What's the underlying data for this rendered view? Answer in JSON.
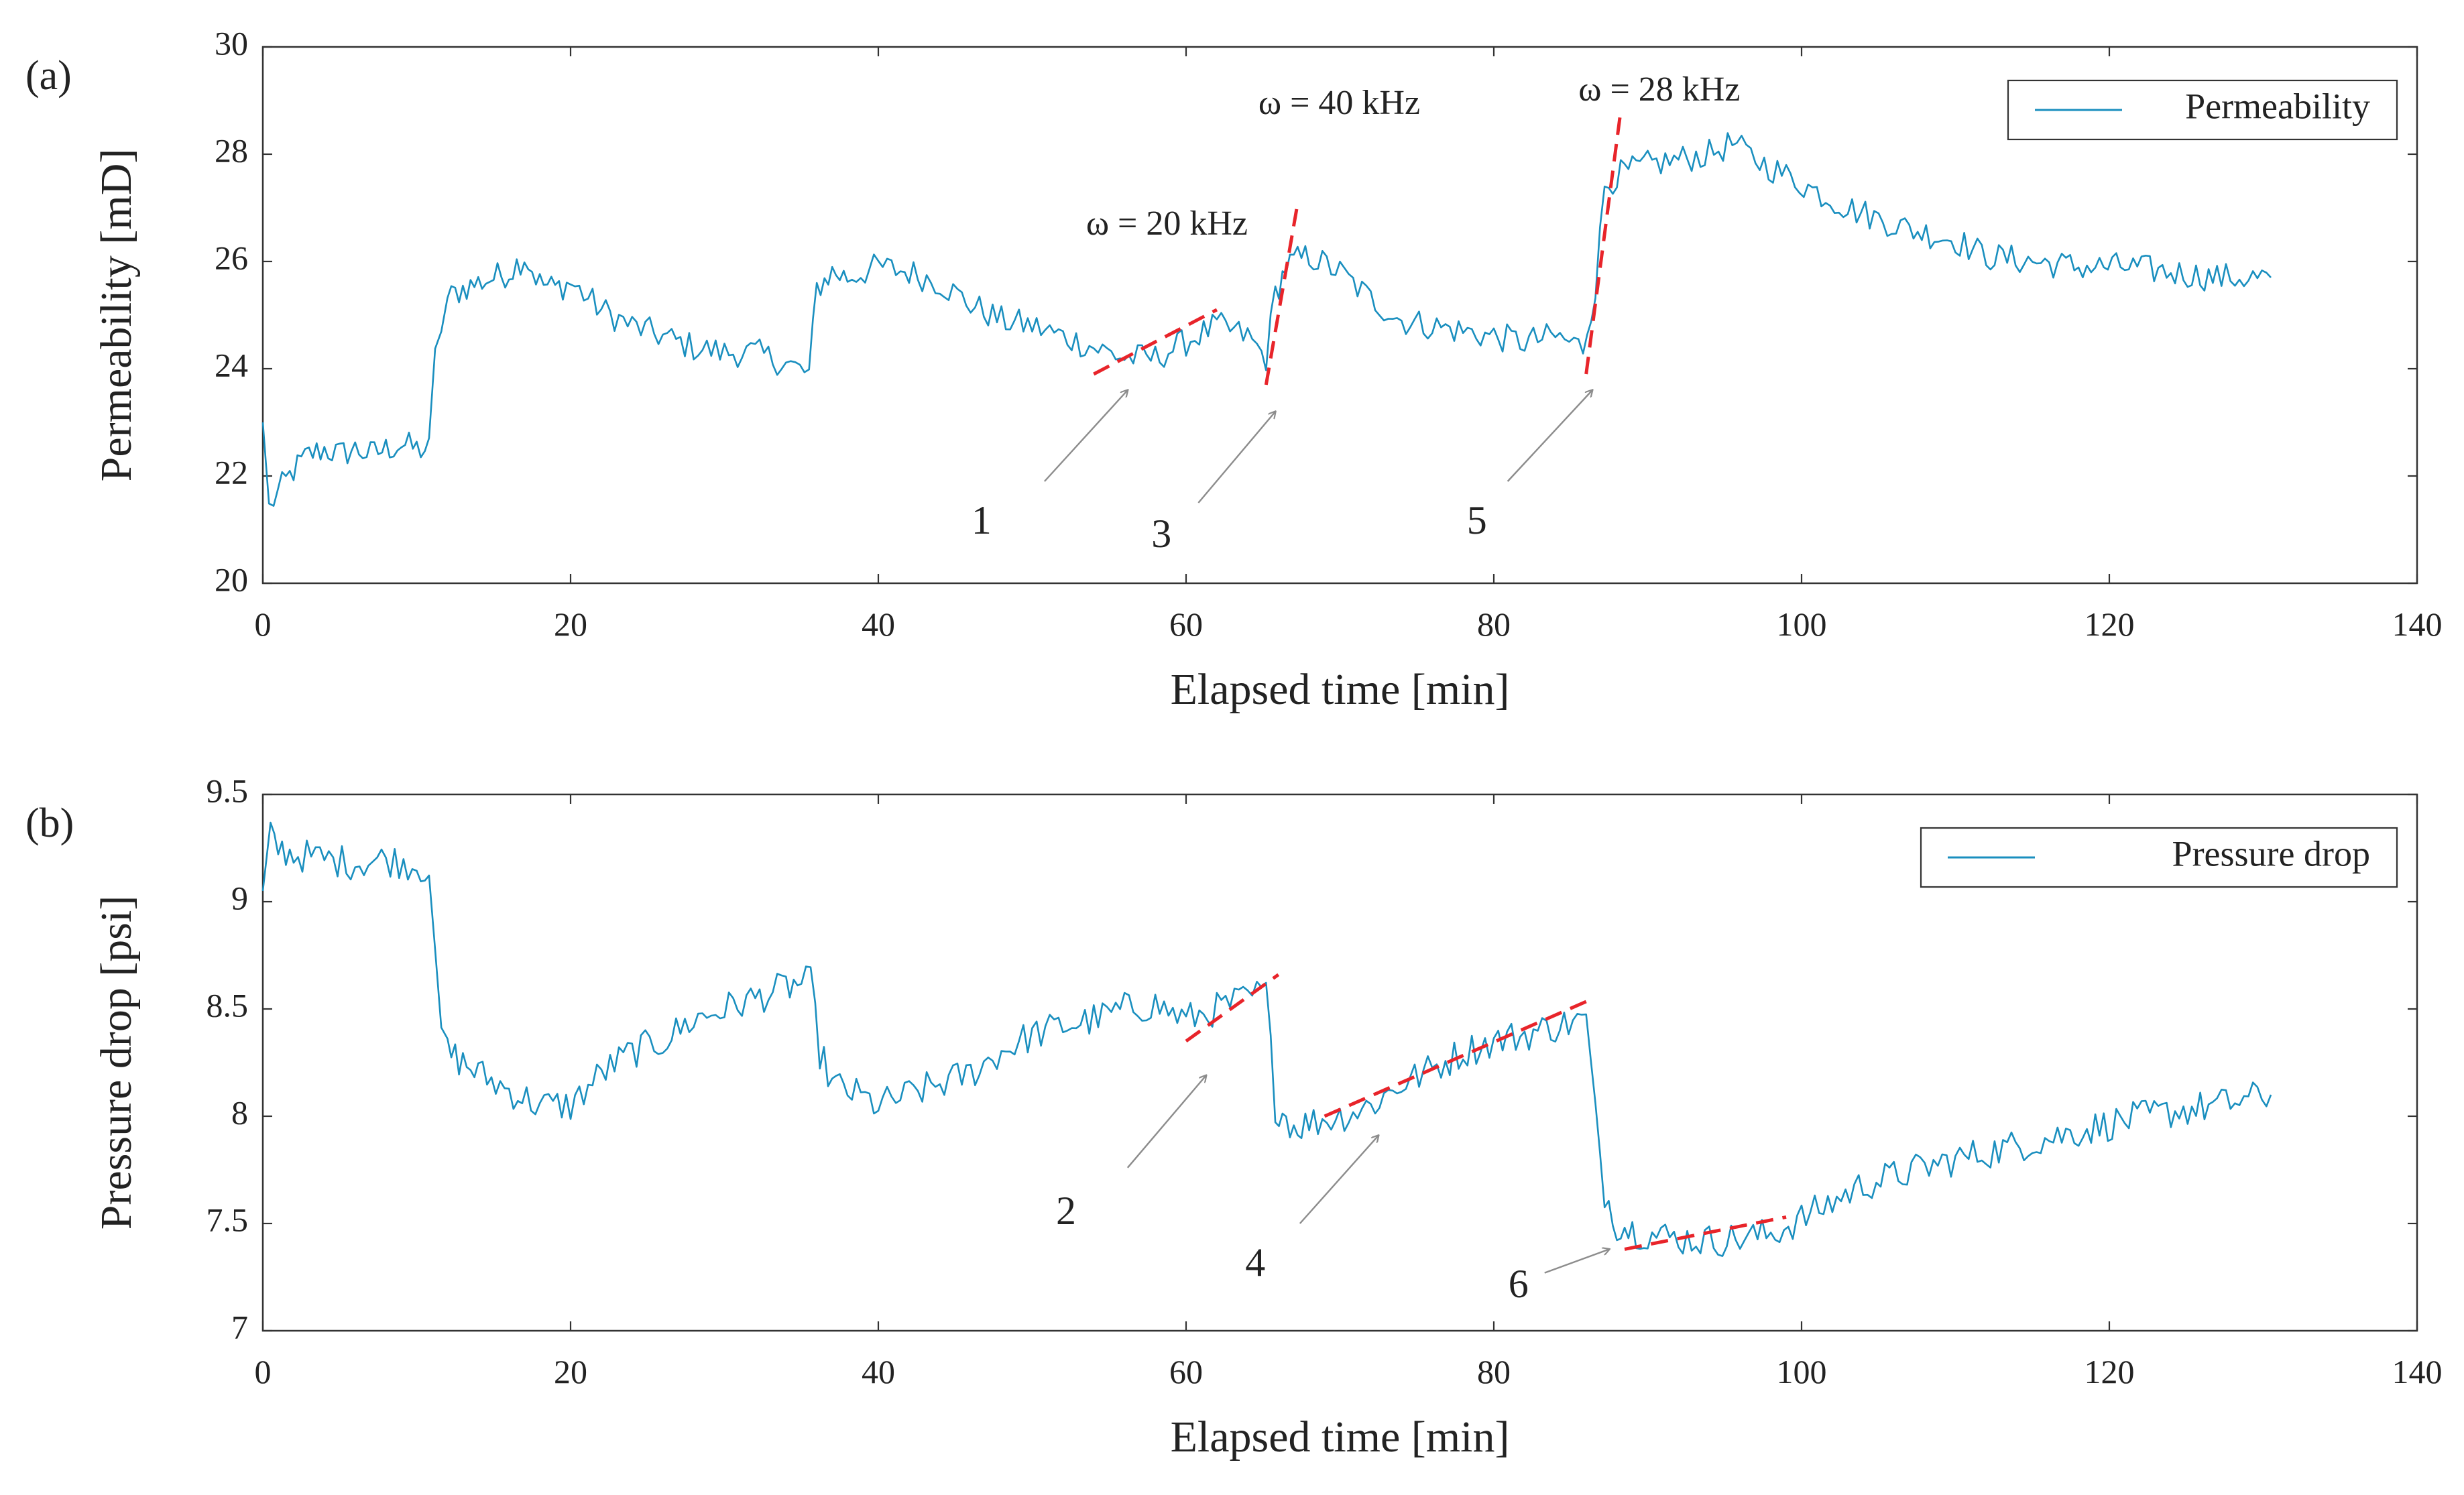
{
  "colors": {
    "series": "#1a8fbf",
    "fit_line": "#e8242a",
    "arrow": "#8c8c8c",
    "axis": "#333333",
    "text": "#222222"
  },
  "chart_data": [
    {
      "panel_label": "(a)",
      "type": "line",
      "xlabel": "Elapsed time [min]",
      "ylabel": "Permeability [mD]",
      "xlim": [
        0,
        140
      ],
      "ylim": [
        20,
        30
      ],
      "xticks": [
        0,
        20,
        40,
        60,
        80,
        100,
        120,
        140
      ],
      "xtick_labels": [
        "0",
        "20",
        "40",
        "60",
        "80",
        "100",
        "120",
        "140"
      ],
      "yticks": [
        20,
        22,
        24,
        26,
        28,
        30
      ],
      "ytick_labels": [
        "20",
        "22",
        "24",
        "26",
        "28",
        "30"
      ],
      "legend": {
        "label": "Permeability",
        "placement": "top-right"
      },
      "series": [
        {
          "name": "Permeability",
          "x": [
            0,
            0.4,
            1,
            2,
            3,
            4,
            5,
            6,
            7,
            8,
            9,
            10,
            10.8,
            11.2,
            11.6,
            12,
            13,
            14,
            15,
            16,
            17,
            18,
            19,
            20,
            22,
            24,
            26,
            28,
            30,
            32,
            34,
            35.5,
            36,
            37,
            38,
            40,
            42,
            44,
            46,
            48,
            50,
            52,
            54,
            56,
            58,
            60,
            62,
            64,
            65.2,
            65.8,
            66.5,
            67,
            68,
            70,
            72,
            74,
            76,
            78,
            80,
            82,
            84,
            85.8,
            86.6,
            87.2,
            88,
            89,
            90,
            92,
            94,
            95.5,
            97,
            99,
            101,
            103,
            105,
            107,
            110,
            112,
            115,
            118,
            121,
            124,
            127,
            130.5
          ],
          "y": [
            23.0,
            21.4,
            21.7,
            22.1,
            22.4,
            22.5,
            22.4,
            22.5,
            22.4,
            22.5,
            22.6,
            22.5,
            22.5,
            24.2,
            24.8,
            25.3,
            25.5,
            25.6,
            25.7,
            25.8,
            26.1,
            25.6,
            25.5,
            25.6,
            25.1,
            24.8,
            24.6,
            24.4,
            24.3,
            24.3,
            24.1,
            23.9,
            25.5,
            25.8,
            25.7,
            25.9,
            25.8,
            25.6,
            25.2,
            24.9,
            24.8,
            24.6,
            24.4,
            24.2,
            24.2,
            24.5,
            24.8,
            24.6,
            24.2,
            25.4,
            25.9,
            26.0,
            26.1,
            25.8,
            25.3,
            24.9,
            24.8,
            24.7,
            24.6,
            24.5,
            24.6,
            24.4,
            25.5,
            27.4,
            27.6,
            27.7,
            27.8,
            27.9,
            28.0,
            28.2,
            27.9,
            27.6,
            27.3,
            27.0,
            26.8,
            26.6,
            26.4,
            26.1,
            26.0,
            25.9,
            25.9,
            25.8,
            25.7,
            25.7
          ]
        }
      ],
      "fit_lines": [
        {
          "x": [
            54,
            62
          ],
          "y": [
            23.9,
            25.1
          ]
        },
        {
          "x": [
            65.2,
            67.2
          ],
          "y": [
            23.7,
            27.0
          ]
        },
        {
          "x": [
            86.0,
            88.2
          ],
          "y": [
            23.9,
            28.7
          ]
        }
      ],
      "annotations": [
        {
          "text": "ω = 20 kHz",
          "x": 53.5,
          "y": 26.5
        },
        {
          "text": "ω = 40 kHz",
          "x": 64.7,
          "y": 28.75
        },
        {
          "text": "ω = 28 kHz",
          "x": 85.5,
          "y": 29.0
        }
      ],
      "arrows": [
        {
          "label": "1",
          "label_x": 46.7,
          "label_y": 21.1,
          "from_x": 50.8,
          "from_y": 21.9,
          "to_x": 56.2,
          "to_y": 23.6
        },
        {
          "label": "3",
          "label_x": 58.4,
          "label_y": 20.85,
          "from_x": 60.8,
          "from_y": 21.5,
          "to_x": 65.8,
          "to_y": 23.2
        },
        {
          "label": "5",
          "label_x": 78.9,
          "label_y": 21.1,
          "from_x": 80.9,
          "from_y": 21.9,
          "to_x": 86.4,
          "to_y": 23.6
        }
      ]
    },
    {
      "panel_label": "(b)",
      "type": "line",
      "xlabel": "Elapsed time [min]",
      "ylabel": "Pressure drop [psi]",
      "xlim": [
        0,
        140
      ],
      "ylim": [
        7,
        9.5
      ],
      "xticks": [
        0,
        20,
        40,
        60,
        80,
        100,
        120,
        140
      ],
      "xtick_labels": [
        "0",
        "20",
        "40",
        "60",
        "80",
        "100",
        "120",
        "140"
      ],
      "yticks": [
        7,
        7.5,
        8,
        8.5,
        9,
        9.5
      ],
      "ytick_labels": [
        "7",
        "7.5",
        "8",
        "8.5",
        "9",
        "9.5"
      ],
      "legend": {
        "label": "Pressure drop",
        "placement": "top-right"
      },
      "series": [
        {
          "name": "Pressure drop",
          "x": [
            0,
            0.5,
            1,
            2,
            4,
            6,
            8,
            10,
            10.8,
            11.2,
            11.6,
            12,
            13,
            14,
            16,
            18,
            20,
            22,
            24,
            26,
            28,
            30,
            32,
            34,
            35,
            35.6,
            36.2,
            37,
            38,
            40,
            42,
            44,
            46,
            48,
            50,
            52,
            54,
            56,
            58,
            60,
            62,
            64,
            65.2,
            65.8,
            66.5,
            67,
            68,
            70,
            72,
            74,
            76,
            78,
            80,
            82,
            84,
            86,
            86.6,
            87.2,
            88,
            89,
            90,
            92,
            94,
            96,
            98,
            100,
            102,
            104,
            106,
            108,
            110,
            112,
            115,
            118,
            121,
            124,
            127,
            130.5
          ],
          "y": [
            9.05,
            9.3,
            9.25,
            9.22,
            9.2,
            9.18,
            9.2,
            9.17,
            9.15,
            8.7,
            8.4,
            8.3,
            8.25,
            8.2,
            8.12,
            8.05,
            8.05,
            8.2,
            8.3,
            8.35,
            8.45,
            8.5,
            8.55,
            8.6,
            8.62,
            8.62,
            8.3,
            8.15,
            8.12,
            8.05,
            8.1,
            8.15,
            8.2,
            8.3,
            8.38,
            8.42,
            8.45,
            8.5,
            8.52,
            8.45,
            8.5,
            8.55,
            8.58,
            8.05,
            8.0,
            7.95,
            7.97,
            8.0,
            8.05,
            8.15,
            8.22,
            8.3,
            8.35,
            8.38,
            8.42,
            8.45,
            8.0,
            7.65,
            7.5,
            7.47,
            7.45,
            7.43,
            7.42,
            7.43,
            7.45,
            7.52,
            7.6,
            7.68,
            7.72,
            7.76,
            7.8,
            7.83,
            7.88,
            7.93,
            7.98,
            8.02,
            8.05,
            8.1
          ]
        }
      ],
      "fit_lines": [
        {
          "x": [
            60,
            66
          ],
          "y": [
            8.35,
            8.66
          ]
        },
        {
          "x": [
            69,
            86.5
          ],
          "y": [
            8.0,
            8.55
          ]
        },
        {
          "x": [
            88.5,
            99
          ],
          "y": [
            7.38,
            7.53
          ]
        }
      ],
      "annotations": [],
      "arrows": [
        {
          "label": "2",
          "label_x": 52.2,
          "label_y": 7.54,
          "from_x": 56.2,
          "from_y": 7.76,
          "to_x": 61.3,
          "to_y": 8.19
        },
        {
          "label": "4",
          "label_x": 64.5,
          "label_y": 7.3,
          "from_x": 67.4,
          "from_y": 7.5,
          "to_x": 72.5,
          "to_y": 7.91
        },
        {
          "label": "6",
          "label_x": 81.6,
          "label_y": 7.2,
          "from_x": 83.3,
          "from_y": 7.27,
          "to_x": 87.5,
          "to_y": 7.38
        }
      ]
    }
  ]
}
